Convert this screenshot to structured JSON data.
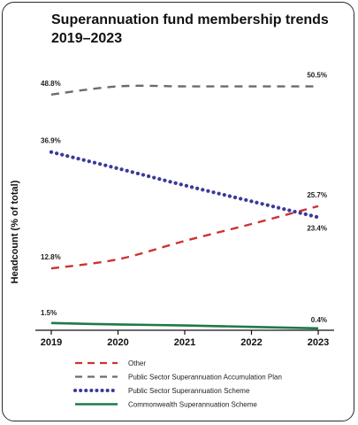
{
  "chart_data": {
    "type": "line",
    "title": "Superannuation fund membership trends 2019–2023",
    "ylabel": "Headcount (% of total)",
    "xlabel": "",
    "x": [
      "2019",
      "2020",
      "2021",
      "2022",
      "2023"
    ],
    "ylim": [
      0,
      55
    ],
    "grid": false,
    "legend_position": "bottom",
    "series": [
      {
        "name": "Other",
        "color": "#cc3333",
        "dash": "dashed",
        "values": [
          12.8,
          14.7,
          18.5,
          22.0,
          25.7
        ],
        "labels": {
          "0": "12.8%",
          "4": "25.7%"
        }
      },
      {
        "name": "Public Sector Superannuation Accumulation Plan",
        "color": "#6b6b6b",
        "dash": "dashed",
        "values": [
          48.8,
          50.5,
          50.5,
          50.5,
          50.5
        ],
        "labels": {
          "0": "48.8%",
          "4": "50.5%"
        }
      },
      {
        "name": "Public Sector Superannuation Scheme",
        "color": "#3a3a9a",
        "dash": "dotted",
        "values": [
          36.9,
          33.5,
          30.0,
          26.7,
          23.4
        ],
        "labels": {
          "0": "36.9%",
          "4": "23.4%"
        }
      },
      {
        "name": "Commonwealth Superannuation Scheme",
        "color": "#1f7a45",
        "dash": "solid",
        "values": [
          1.5,
          1.2,
          1.0,
          0.7,
          0.4
        ],
        "labels": {
          "0": "1.5%",
          "4": "0.4%"
        }
      }
    ]
  }
}
